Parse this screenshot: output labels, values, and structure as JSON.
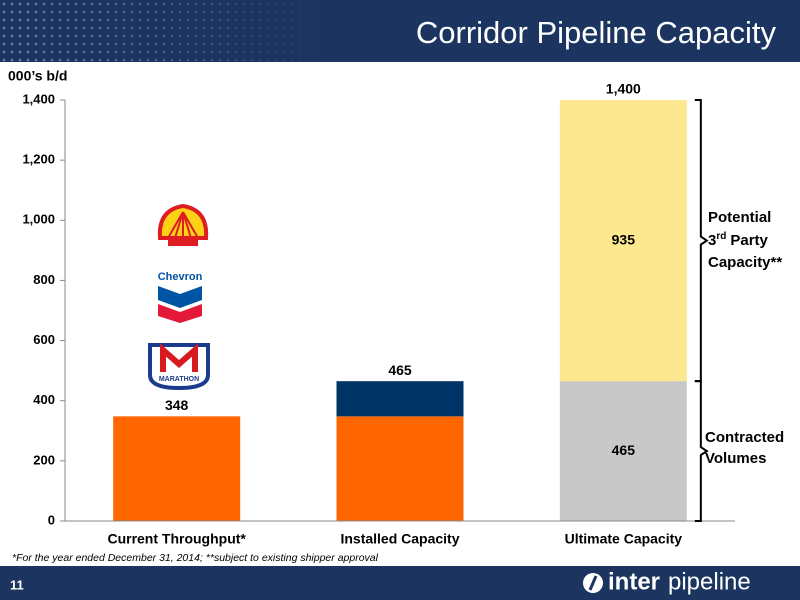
{
  "slide": {
    "title": "Corridor Pipeline Capacity",
    "footnote": "*For the year ended December 31, 2014; **subject to existing shipper approval",
    "page_number": "11",
    "brand": [
      "inter",
      "pipeline"
    ],
    "logos": [
      "Chevron",
      "MARATHON"
    ]
  },
  "chart_data": {
    "type": "stacked-bar",
    "y_axis_label": "000’s b/d",
    "categories": [
      "Current Throughput*",
      "Installed Capacity",
      "Ultimate Capacity"
    ],
    "series": [
      {
        "color": "#ff6600",
        "values": [
          348,
          348,
          null
        ]
      },
      {
        "color": "#003366",
        "values": [
          null,
          117,
          null
        ]
      },
      {
        "color": "#c8c8c8",
        "values": [
          null,
          null,
          465
        ],
        "show_labels": true
      },
      {
        "color": "#fde88f",
        "values": [
          null,
          null,
          935
        ],
        "show_labels": true
      }
    ],
    "totals": [
      348,
      465,
      1400
    ],
    "value_labels": [
      "348",
      "465",
      "1,400"
    ],
    "ylim": [
      0,
      1400
    ],
    "yticks": [
      0,
      200,
      400,
      600,
      800,
      {
        "value": 1000,
        "label": "1,000"
      },
      {
        "value": 1200,
        "label": "1,200"
      },
      {
        "value": 1400,
        "label": "1,400"
      }
    ],
    "annotations": {
      "upper": {
        "line1": "Potential",
        "num": "3",
        "sup": "rd",
        "rest": "Party",
        "line3": "Capacity**"
      },
      "lower": [
        "Contracted",
        "Volumes"
      ]
    }
  }
}
